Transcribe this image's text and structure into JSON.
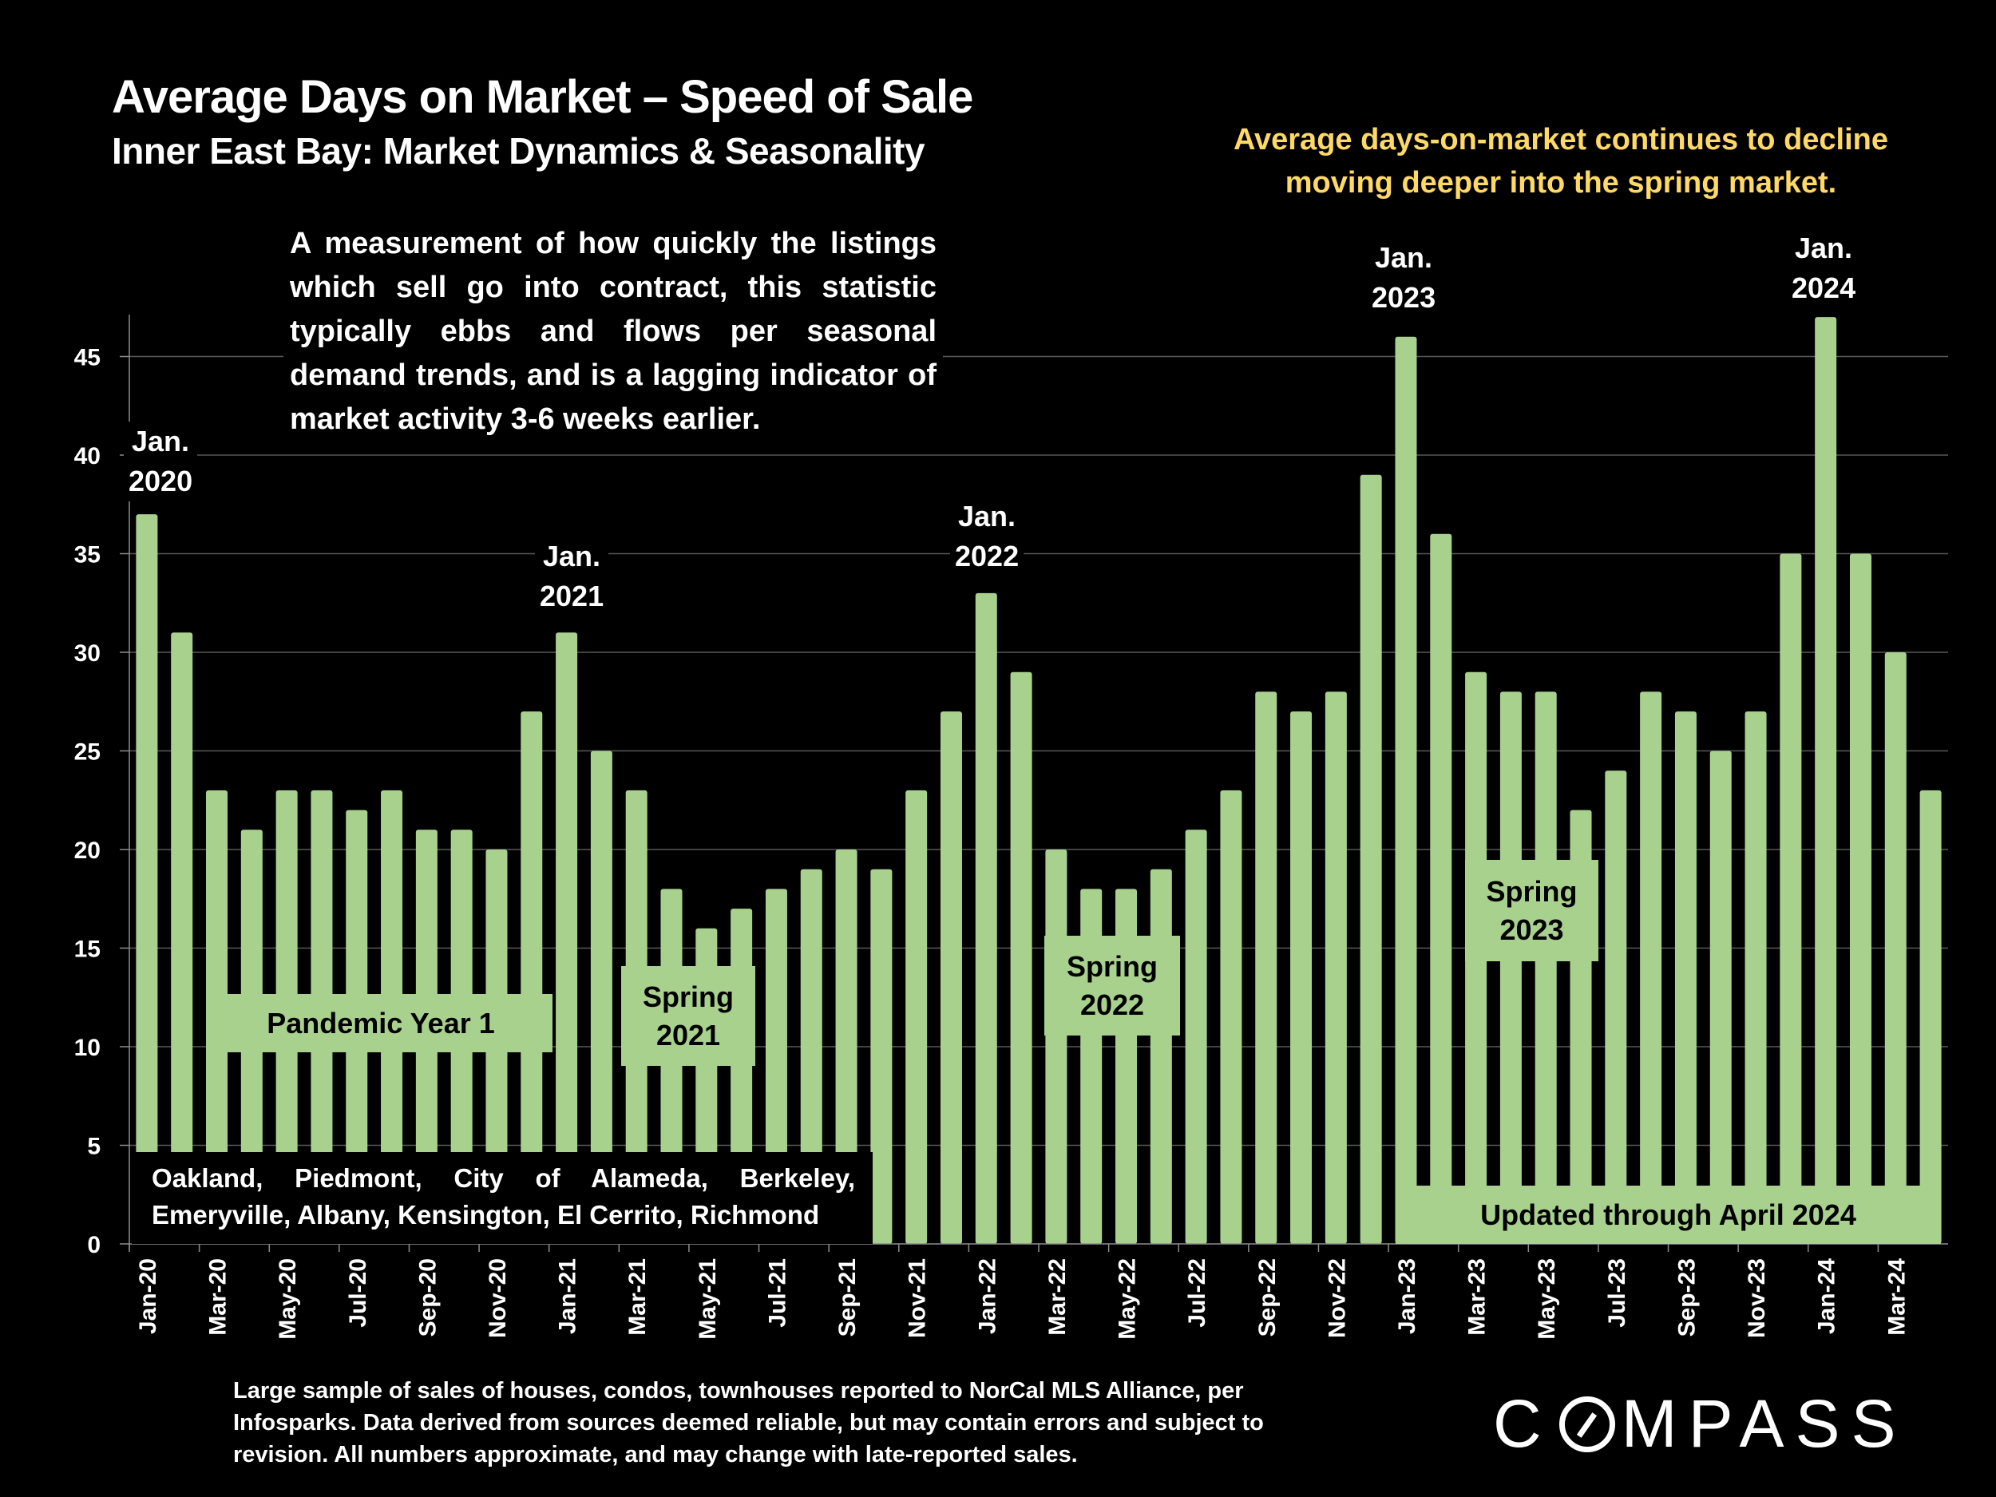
{
  "header": {
    "title": "Average Days on Market – Speed of Sale",
    "subtitle": "Inner East Bay: Market Dynamics & Seasonality"
  },
  "callout": "Average days-on-market continues to decline moving deeper into the spring market.",
  "description": "A measurement of how quickly the listings which sell go into contract, this statistic typically ebbs and flows per seasonal demand trends, and is a lagging indicator of market activity 3-6 weeks earlier.",
  "year_labels": [
    {
      "line1": "Jan.",
      "line2": "2020"
    },
    {
      "line1": "Jan.",
      "line2": "2021"
    },
    {
      "line1": "Jan.",
      "line2": "2022"
    },
    {
      "line1": "Jan.",
      "line2": "2023"
    },
    {
      "line1": "Jan.",
      "line2": "2024"
    }
  ],
  "period_labels": {
    "pandemic": "Pandemic Year 1",
    "spring2021": {
      "line1": "Spring",
      "line2": "2021"
    },
    "spring2022": {
      "line1": "Spring",
      "line2": "2022"
    },
    "spring2023": {
      "line1": "Spring",
      "line2": "2023"
    },
    "updated": "Updated through April 2024"
  },
  "cities": "Oakland, Piedmont, City of Alameda, Berkeley, Emeryville, Albany, Kensington, El Cerrito, Richmond",
  "footnote": "Large sample of sales of houses, condos, townhouses reported to NorCal MLS Alliance, per Infosparks. Data derived from sources deemed reliable, but may contain errors and subject to revision. All numbers approximate, and may change with late-reported sales.",
  "logo": {
    "before": "C",
    "after": "MPASS"
  },
  "colors": {
    "bar": "#A9D18E",
    "callout": "#FFD966",
    "background": "#000000",
    "grid": "#595959"
  },
  "chart_data": {
    "type": "bar",
    "title": "Average Days on Market – Speed of Sale",
    "subtitle": "Inner East Bay: Market Dynamics & Seasonality",
    "xlabel": "",
    "ylabel": "",
    "ylim": [
      0,
      47
    ],
    "yticks": [
      0,
      5,
      10,
      15,
      20,
      25,
      30,
      35,
      40,
      45
    ],
    "grid": true,
    "legend": "none",
    "categories": [
      "Jan-20",
      "Feb-20",
      "Mar-20",
      "Apr-20",
      "May-20",
      "Jun-20",
      "Jul-20",
      "Aug-20",
      "Sep-20",
      "Oct-20",
      "Nov-20",
      "Dec-20",
      "Jan-21",
      "Feb-21",
      "Mar-21",
      "Apr-21",
      "May-21",
      "Jun-21",
      "Jul-21",
      "Aug-21",
      "Sep-21",
      "Oct-21",
      "Nov-21",
      "Dec-21",
      "Jan-22",
      "Feb-22",
      "Mar-22",
      "Apr-22",
      "May-22",
      "Jun-22",
      "Jul-22",
      "Aug-22",
      "Sep-22",
      "Oct-22",
      "Nov-22",
      "Dec-22",
      "Jan-23",
      "Feb-23",
      "Mar-23",
      "Apr-23",
      "May-23",
      "Jun-23",
      "Jul-23",
      "Aug-23",
      "Sep-23",
      "Oct-23",
      "Nov-23",
      "Dec-23",
      "Jan-24",
      "Feb-24",
      "Mar-24",
      "Apr-24"
    ],
    "xtick_labels": [
      "Jan-20",
      "Mar-20",
      "May-20",
      "Jul-20",
      "Sep-20",
      "Nov-20",
      "Jan-21",
      "Mar-21",
      "May-21",
      "Jul-21",
      "Sep-21",
      "Nov-21",
      "Jan-22",
      "Mar-22",
      "May-22",
      "Jul-22",
      "Sep-22",
      "Nov-22",
      "Jan-23",
      "Mar-23",
      "May-23",
      "Jul-23",
      "Sep-23",
      "Nov-23",
      "Jan-24",
      "Mar-24"
    ],
    "values": [
      37,
      31,
      23,
      21,
      23,
      23,
      22,
      23,
      21,
      21,
      20,
      27,
      31,
      25,
      23,
      18,
      16,
      17,
      18,
      19,
      20,
      19,
      23,
      27,
      33,
      29,
      20,
      18,
      18,
      19,
      21,
      23,
      28,
      27,
      28,
      39,
      46,
      36,
      29,
      28,
      28,
      22,
      24,
      28,
      27,
      25,
      27,
      35,
      47,
      35,
      30,
      23
    ]
  }
}
